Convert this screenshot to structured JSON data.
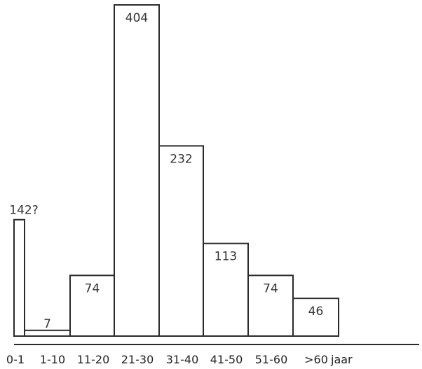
{
  "chart_data": {
    "type": "bar",
    "categories": [
      "0-1",
      "1-10",
      "11-20",
      "21-30",
      "31-40",
      "41-50",
      "51-60",
      ">60"
    ],
    "values": [
      142,
      7,
      74,
      404,
      232,
      113,
      74,
      46
    ],
    "value_labels": [
      "142?",
      "7",
      "74",
      "404",
      "232",
      "113",
      "74",
      "46"
    ],
    "x_unit": "jaar",
    "ylim": [
      0,
      404
    ],
    "grid": false,
    "legend": "none",
    "colors": {
      "bar_fill": "#ffffff",
      "outline": "#2a2a2a"
    }
  }
}
